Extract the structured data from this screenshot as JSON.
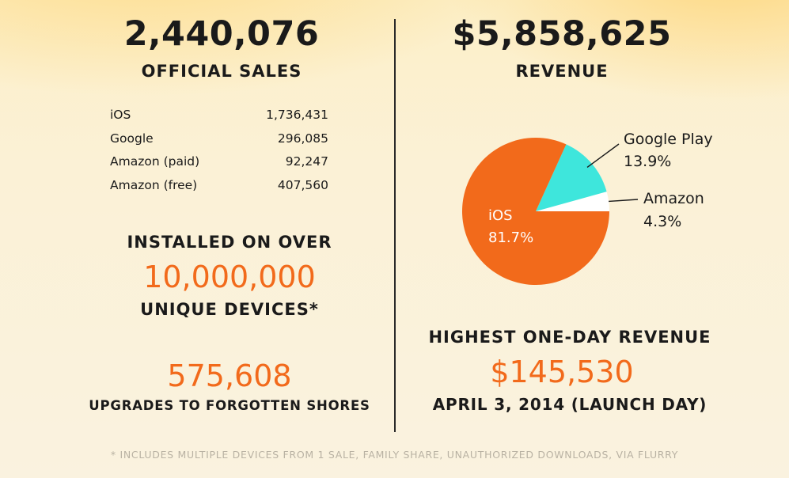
{
  "left": {
    "sales_total": "2,440,076",
    "sales_label": "OFFICIAL SALES",
    "platform_sales": [
      {
        "platform": "iOS",
        "value": "1,736,431"
      },
      {
        "platform": "Google",
        "value": "296,085"
      },
      {
        "platform": "Amazon (paid)",
        "value": "92,247"
      },
      {
        "platform": "Amazon (free)",
        "value": "407,560"
      }
    ],
    "installed_line1": "INSTALLED ON OVER",
    "installed_value": "10,000,000",
    "installed_line2": "UNIQUE DEVICES*",
    "upgrades_value": "575,608",
    "upgrades_label": "UPGRADES TO FORGOTTEN SHORES"
  },
  "right": {
    "revenue_total": "$5,858,625",
    "revenue_label": "REVENUE",
    "highest_label": "HIGHEST ONE-DAY REVENUE",
    "highest_value": "$145,530",
    "highest_date": "APRIL 3, 2014 (LAUNCH DAY)"
  },
  "footnote": "* INCLUDES MULTIPLE DEVICES FROM 1 SALE, FAMILY SHARE, UNAUTHORIZED DOWNLOADS, VIA FLURRY",
  "colors": {
    "accent_orange": "#f26a1b",
    "google_cyan": "#3ee6dc",
    "amazon_white": "#ffffff"
  },
  "chart_data": {
    "type": "pie",
    "title": "",
    "slices": [
      {
        "name": "iOS",
        "label": "81.7%",
        "value": 81.7,
        "color": "#f26a1b"
      },
      {
        "name": "Google Play",
        "label": "13.9%",
        "value": 13.9,
        "color": "#3ee6dc"
      },
      {
        "name": "Amazon",
        "label": "4.3%",
        "value": 4.3,
        "color": "#ffffff"
      }
    ]
  }
}
